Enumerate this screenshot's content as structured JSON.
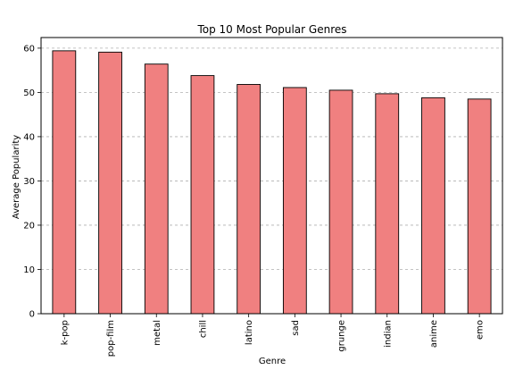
{
  "chart_data": {
    "type": "bar",
    "title": "Top 10 Most Popular Genres",
    "xlabel": "Genre",
    "ylabel": "Average Popularity",
    "categories": [
      "k-pop",
      "pop-film",
      "metal",
      "chill",
      "latino",
      "sad",
      "grunge",
      "indian",
      "anime",
      "emo"
    ],
    "values": [
      59.4,
      59.1,
      56.4,
      53.8,
      51.8,
      51.1,
      50.5,
      49.7,
      48.8,
      48.5
    ],
    "ylim": [
      0,
      62.4
    ],
    "yticks": [
      0,
      10,
      20,
      30,
      40,
      50,
      60
    ],
    "grid": "y-dashed",
    "legend": "none",
    "bar_color": "#f08080",
    "edge_color": "#000000"
  }
}
